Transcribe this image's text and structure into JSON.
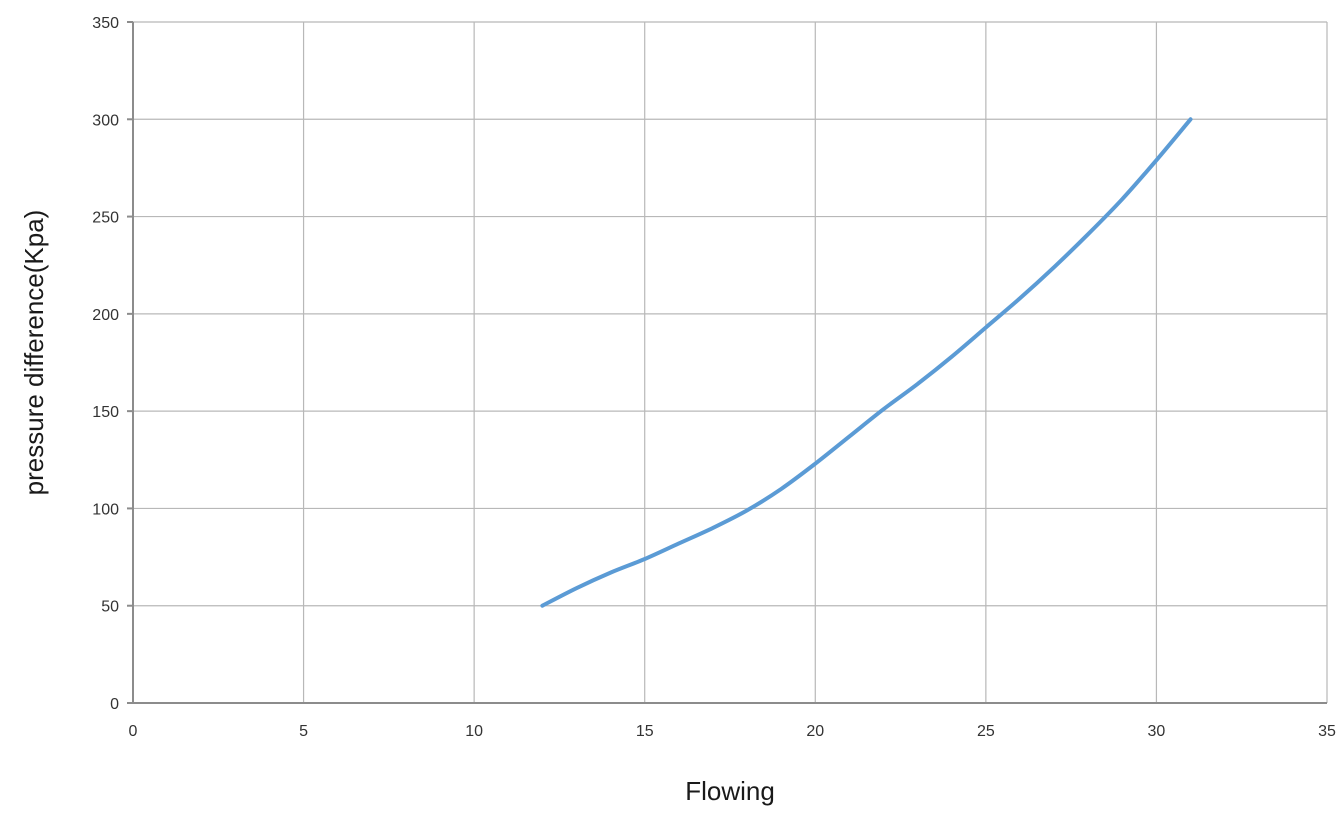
{
  "chart_data": {
    "type": "line",
    "title": "",
    "xlabel": "Flowing",
    "ylabel": "pressure difference(Kpa)",
    "xlim": [
      0,
      35
    ],
    "ylim": [
      0,
      350
    ],
    "x_ticks": [
      0,
      5,
      10,
      15,
      20,
      25,
      30,
      35
    ],
    "y_ticks": [
      0,
      50,
      100,
      150,
      200,
      250,
      300,
      350
    ],
    "grid": true,
    "legend": "none",
    "series": [
      {
        "color": "#5b9bd5",
        "x": [
          12,
          13,
          14,
          15,
          16,
          17,
          18,
          19,
          20,
          21,
          22,
          23,
          24,
          25,
          26,
          27,
          28,
          29,
          30,
          31
        ],
        "y": [
          50,
          59,
          67,
          74,
          82,
          90,
          99,
          110,
          123,
          137,
          151,
          164,
          178,
          193,
          208,
          224,
          241,
          259,
          279,
          300
        ]
      }
    ]
  }
}
